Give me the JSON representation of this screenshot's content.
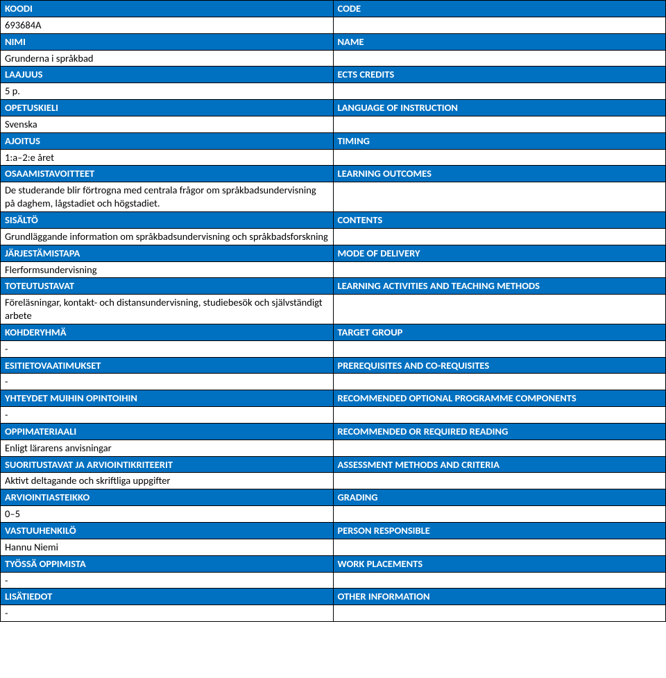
{
  "colors": {
    "header_bg": "#0070c0",
    "header_text": "#ffffff",
    "content_bg": "#ffffff",
    "content_text": "#000000",
    "border": "#000000"
  },
  "rows": [
    {
      "left_header": "KOODI",
      "right_header": "CODE"
    },
    {
      "left_content": "693684A",
      "right_content": ""
    },
    {
      "left_header": "NIMI",
      "right_header": "NAME"
    },
    {
      "left_content": "Grunderna i språkbad",
      "right_content": ""
    },
    {
      "left_header": "LAAJUUS",
      "right_header": "ECTS CREDITS"
    },
    {
      "left_content": "5 p.",
      "right_content": ""
    },
    {
      "left_header": "OPETUSKIELI",
      "right_header": "LANGUAGE OF INSTRUCTION"
    },
    {
      "left_content": "Svenska",
      "right_content": ""
    },
    {
      "left_header": "AJOITUS",
      "right_header": "TIMING"
    },
    {
      "left_content": "1:a–2:e året",
      "right_content": ""
    },
    {
      "left_header": "OSAAMISTAVOITTEET",
      "right_header": "LEARNING OUTCOMES"
    },
    {
      "left_content": "De studerande blir förtrogna med centrala frågor om språkbadsundervisning på daghem, lågstadiet och högstadiet.",
      "right_content": ""
    },
    {
      "left_header": "SISÄLTÖ",
      "right_header": "CONTENTS"
    },
    {
      "left_content": "Grundläggande information om språkbadsundervisning och språkbadsforskning",
      "right_content": ""
    },
    {
      "left_header": "JÄRJESTÄMISTAPA",
      "right_header": "MODE OF DELIVERY"
    },
    {
      "left_content": "Flerformsundervisning",
      "right_content": ""
    },
    {
      "left_header": "TOTEUTUSTAVAT",
      "right_header": "LEARNING ACTIVITIES AND TEACHING METHODS"
    },
    {
      "left_content": "Föreläsningar, kontakt- och distansundervisning, studiebesök och självständigt arbete",
      "right_content": ""
    },
    {
      "left_header": "KOHDERYHMÄ",
      "right_header": "TARGET GROUP"
    },
    {
      "left_content": "-",
      "right_content": ""
    },
    {
      "left_header": "ESITIETOVAATIMUKSET",
      "right_header": "PREREQUISITES AND CO-REQUISITES"
    },
    {
      "left_content": "-",
      "right_content": ""
    },
    {
      "left_header": "YHTEYDET MUIHIN OPINTOIHIN",
      "right_header": "RECOMMENDED OPTIONAL PROGRAMME COMPONENTS"
    },
    {
      "left_content": "-",
      "right_content": ""
    },
    {
      "left_header": "OPPIMATERIAALI",
      "right_header": "RECOMMENDED OR REQUIRED READING"
    },
    {
      "left_content": "Enligt lärarens anvisningar",
      "right_content": ""
    },
    {
      "left_header": "SUORITUSTAVAT JA ARVIOINTIKRITEERIT",
      "right_header": "ASSESSMENT METHODS AND CRITERIA"
    },
    {
      "left_content": "Aktivt deltagande och skriftliga uppgifter",
      "right_content": ""
    },
    {
      "left_header": "ARVIOINTIASTEIKKO",
      "right_header": "GRADING"
    },
    {
      "left_content": "0–5",
      "right_content": ""
    },
    {
      "left_header": "VASTUUHENKILÖ",
      "right_header": "PERSON RESPONSIBLE"
    },
    {
      "left_content": "Hannu Niemi",
      "right_content": ""
    },
    {
      "left_header": "TYÖSSÄ OPPIMISTA",
      "right_header": "WORK PLACEMENTS"
    },
    {
      "left_content": "-",
      "right_content": ""
    },
    {
      "left_header": "LISÄTIEDOT",
      "right_header": "OTHER INFORMATION"
    },
    {
      "left_content": "-",
      "right_content": ""
    }
  ]
}
